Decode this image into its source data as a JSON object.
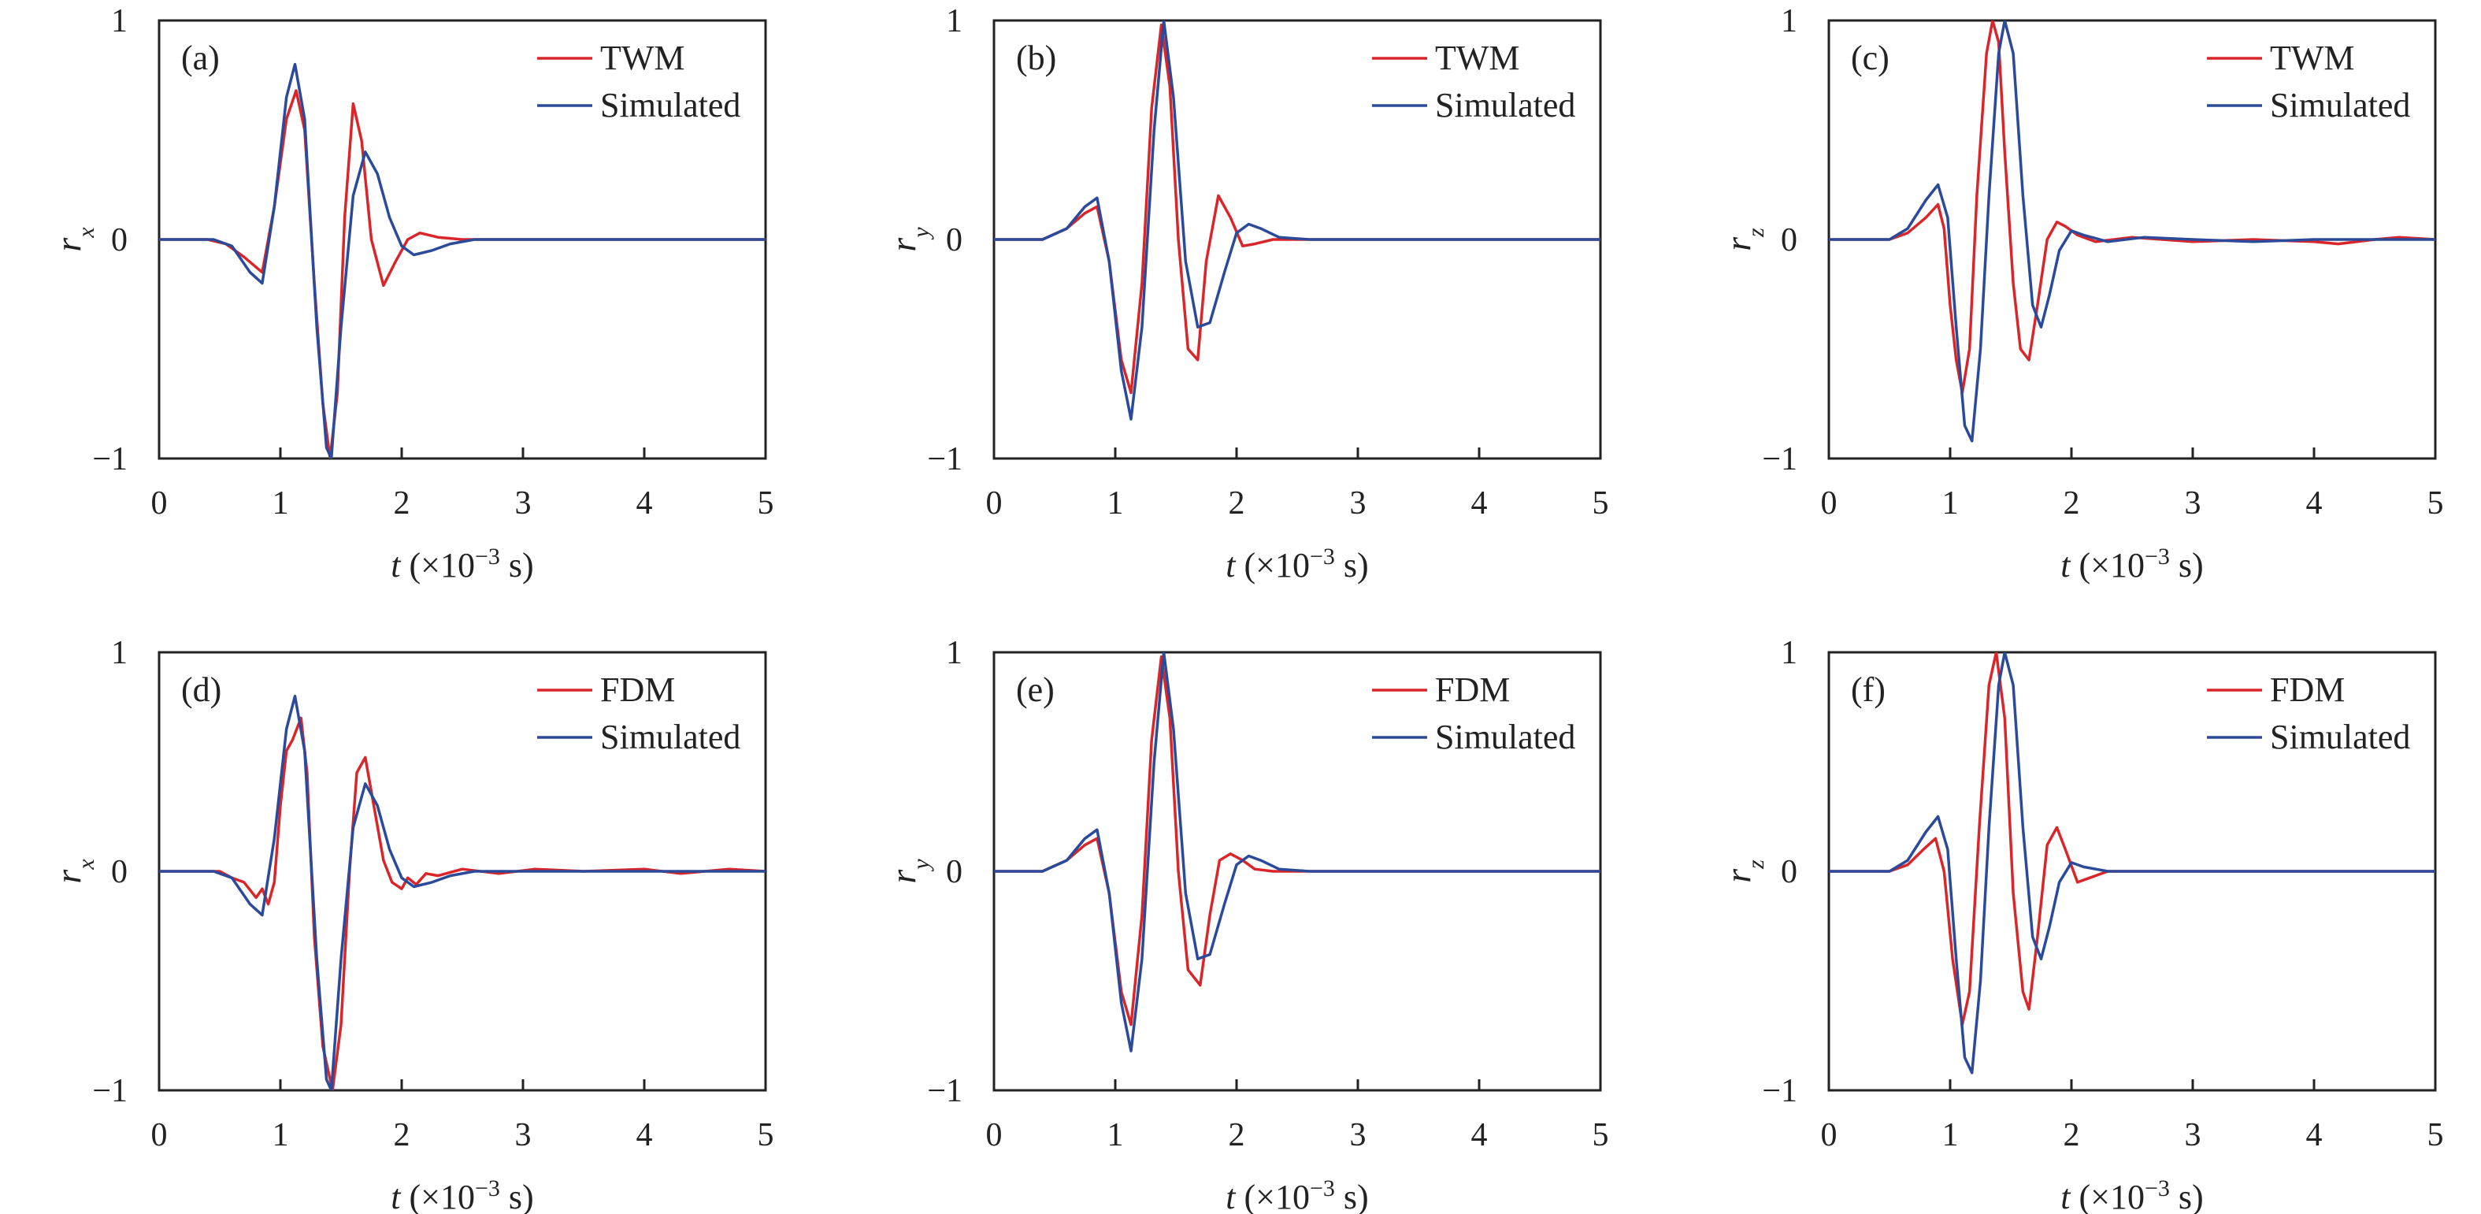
{
  "figure": {
    "colors": {
      "twm_fdm": "#d9262b",
      "simulated": "#2b4a9a",
      "axis": "#222222"
    }
  },
  "chart_data": [
    {
      "panel_label": "(a)",
      "type": "line",
      "xlabel_var": "t",
      "xlabel_rest": " (×10",
      "xlabel_exp": "−3",
      "xlabel_end": " s)",
      "ylabel_var": "r",
      "ylabel_sub": "x",
      "xlim": [
        0,
        5
      ],
      "ylim": [
        -1,
        1
      ],
      "xticks": [
        0,
        1,
        2,
        3,
        4,
        5
      ],
      "yticks": [
        -1,
        0,
        1
      ],
      "xtick_labels": [
        "0",
        "1",
        "2",
        "3",
        "4",
        "5"
      ],
      "ytick_labels": [
        "−1",
        "0",
        "1"
      ],
      "legend_position": "top-right",
      "series": [
        {
          "name": "TWM",
          "color": "#d9262b",
          "x": [
            0,
            0.4,
            0.55,
            0.7,
            0.85,
            0.95,
            1.05,
            1.13,
            1.2,
            1.28,
            1.35,
            1.41,
            1.47,
            1.53,
            1.6,
            1.67,
            1.75,
            1.85,
            1.95,
            2.05,
            2.15,
            2.3,
            2.5,
            5
          ],
          "y": [
            0,
            0,
            -0.02,
            -0.08,
            -0.15,
            0.15,
            0.55,
            0.68,
            0.5,
            -0.2,
            -0.75,
            -1.0,
            -0.7,
            0.1,
            0.62,
            0.45,
            0.0,
            -0.21,
            -0.1,
            0.0,
            0.03,
            0.01,
            0,
            0
          ]
        },
        {
          "name": "Simulated",
          "color": "#2b4a9a",
          "x": [
            0,
            0.45,
            0.6,
            0.75,
            0.85,
            0.95,
            1.05,
            1.12,
            1.2,
            1.3,
            1.38,
            1.42,
            1.5,
            1.6,
            1.7,
            1.8,
            1.9,
            2.0,
            2.1,
            2.25,
            2.4,
            2.6,
            5
          ],
          "y": [
            0,
            0,
            -0.03,
            -0.15,
            -0.2,
            0.15,
            0.65,
            0.8,
            0.55,
            -0.4,
            -0.95,
            -1.0,
            -0.4,
            0.2,
            0.4,
            0.3,
            0.1,
            -0.03,
            -0.07,
            -0.05,
            -0.02,
            0,
            0
          ]
        }
      ]
    },
    {
      "panel_label": "(b)",
      "type": "line",
      "xlabel_var": "t",
      "xlabel_rest": " (×10",
      "xlabel_exp": "−3",
      "xlabel_end": " s)",
      "ylabel_var": "r",
      "ylabel_sub": "y",
      "xlim": [
        0,
        5
      ],
      "ylim": [
        -1,
        1
      ],
      "xticks": [
        0,
        1,
        2,
        3,
        4,
        5
      ],
      "yticks": [
        -1,
        0,
        1
      ],
      "xtick_labels": [
        "0",
        "1",
        "2",
        "3",
        "4",
        "5"
      ],
      "ytick_labels": [
        "−1",
        "0",
        "1"
      ],
      "legend_position": "top-right",
      "series": [
        {
          "name": "TWM",
          "color": "#d9262b",
          "x": [
            0,
            0.4,
            0.6,
            0.75,
            0.85,
            0.95,
            1.05,
            1.13,
            1.22,
            1.3,
            1.38,
            1.45,
            1.52,
            1.6,
            1.68,
            1.75,
            1.85,
            1.95,
            2.05,
            2.15,
            2.3,
            2.5,
            5
          ],
          "y": [
            0,
            0,
            0.05,
            0.12,
            0.15,
            -0.1,
            -0.55,
            -0.7,
            -0.2,
            0.6,
            0.98,
            0.7,
            0.0,
            -0.5,
            -0.55,
            -0.1,
            0.2,
            0.1,
            -0.03,
            -0.02,
            0,
            0,
            0
          ]
        },
        {
          "name": "Simulated",
          "color": "#2b4a9a",
          "x": [
            0,
            0.4,
            0.6,
            0.75,
            0.85,
            0.95,
            1.05,
            1.13,
            1.22,
            1.32,
            1.4,
            1.48,
            1.58,
            1.68,
            1.78,
            1.9,
            2.0,
            2.1,
            2.2,
            2.35,
            2.6,
            5
          ],
          "y": [
            0,
            0,
            0.05,
            0.15,
            0.19,
            -0.1,
            -0.6,
            -0.82,
            -0.4,
            0.5,
            1.0,
            0.65,
            -0.1,
            -0.4,
            -0.38,
            -0.15,
            0.03,
            0.07,
            0.05,
            0.01,
            0,
            0
          ]
        }
      ]
    },
    {
      "panel_label": "(c)",
      "type": "line",
      "xlabel_var": "t",
      "xlabel_rest": " (×10",
      "xlabel_exp": "−3",
      "xlabel_end": " s)",
      "ylabel_var": "r",
      "ylabel_sub": "z",
      "xlim": [
        0,
        5
      ],
      "ylim": [
        -1,
        1
      ],
      "xticks": [
        0,
        1,
        2,
        3,
        4,
        5
      ],
      "yticks": [
        -1,
        0,
        1
      ],
      "xtick_labels": [
        "0",
        "1",
        "2",
        "3",
        "4",
        "5"
      ],
      "ytick_labels": [
        "−1",
        "0",
        "1"
      ],
      "legend_position": "top-right",
      "series": [
        {
          "name": "TWM",
          "color": "#d9262b",
          "x": [
            0,
            0.5,
            0.65,
            0.8,
            0.9,
            0.95,
            1.0,
            1.05,
            1.1,
            1.16,
            1.22,
            1.3,
            1.35,
            1.4,
            1.45,
            1.52,
            1.58,
            1.65,
            1.72,
            1.8,
            1.88,
            1.95,
            2.05,
            2.2,
            2.5,
            3.0,
            3.5,
            4.0,
            4.2,
            4.5,
            4.7,
            5
          ],
          "y": [
            0,
            0,
            0.03,
            0.1,
            0.16,
            0.05,
            -0.3,
            -0.55,
            -0.7,
            -0.5,
            0.2,
            0.85,
            1.0,
            0.9,
            0.4,
            -0.2,
            -0.5,
            -0.55,
            -0.3,
            0.0,
            0.08,
            0.06,
            0.02,
            -0.01,
            0.01,
            -0.01,
            0.0,
            -0.01,
            -0.02,
            0.0,
            0.01,
            0
          ]
        },
        {
          "name": "Simulated",
          "color": "#2b4a9a",
          "x": [
            0,
            0.5,
            0.65,
            0.8,
            0.9,
            0.98,
            1.05,
            1.12,
            1.18,
            1.25,
            1.32,
            1.4,
            1.45,
            1.52,
            1.6,
            1.68,
            1.75,
            1.82,
            1.9,
            2.0,
            2.1,
            2.3,
            2.6,
            3.0,
            3.5,
            4.0,
            4.5,
            5
          ],
          "y": [
            0,
            0,
            0.05,
            0.18,
            0.25,
            0.1,
            -0.4,
            -0.85,
            -0.92,
            -0.5,
            0.2,
            0.85,
            1.0,
            0.85,
            0.2,
            -0.3,
            -0.4,
            -0.25,
            -0.05,
            0.04,
            0.02,
            -0.01,
            0.01,
            0.0,
            -0.01,
            0.0,
            0.0,
            0
          ]
        }
      ]
    },
    {
      "panel_label": "(d)",
      "type": "line",
      "xlabel_var": "t",
      "xlabel_rest": " (×10",
      "xlabel_exp": "−3",
      "xlabel_end": " s)",
      "ylabel_var": "r",
      "ylabel_sub": "x",
      "xlim": [
        0,
        5
      ],
      "ylim": [
        -1,
        1
      ],
      "xticks": [
        0,
        1,
        2,
        3,
        4,
        5
      ],
      "yticks": [
        -1,
        0,
        1
      ],
      "xtick_labels": [
        "0",
        "1",
        "2",
        "3",
        "4",
        "5"
      ],
      "ytick_labels": [
        "−1",
        "0",
        "1"
      ],
      "legend_position": "top-right",
      "series": [
        {
          "name": "FDM",
          "color": "#d9262b",
          "x": [
            0,
            0.5,
            0.6,
            0.7,
            0.8,
            0.85,
            0.9,
            0.95,
            1.0,
            1.05,
            1.1,
            1.17,
            1.22,
            1.28,
            1.35,
            1.43,
            1.5,
            1.57,
            1.63,
            1.7,
            1.77,
            1.85,
            1.92,
            2.0,
            2.05,
            2.12,
            2.2,
            2.3,
            2.5,
            2.8,
            3.1,
            3.5,
            4.0,
            4.3,
            4.7,
            5
          ],
          "y": [
            0,
            0,
            -0.03,
            -0.05,
            -0.12,
            -0.08,
            -0.15,
            -0.05,
            0.3,
            0.55,
            0.6,
            0.7,
            0.45,
            -0.3,
            -0.8,
            -1.0,
            -0.7,
            0.0,
            0.45,
            0.52,
            0.3,
            0.05,
            -0.05,
            -0.08,
            -0.03,
            -0.06,
            -0.01,
            -0.02,
            0.01,
            -0.01,
            0.01,
            0.0,
            0.01,
            -0.01,
            0.01,
            0
          ]
        },
        {
          "name": "Simulated",
          "color": "#2b4a9a",
          "x": [
            0,
            0.45,
            0.6,
            0.75,
            0.85,
            0.95,
            1.05,
            1.12,
            1.2,
            1.3,
            1.38,
            1.42,
            1.5,
            1.6,
            1.7,
            1.8,
            1.9,
            2.0,
            2.1,
            2.25,
            2.4,
            2.6,
            5
          ],
          "y": [
            0,
            0,
            -0.03,
            -0.15,
            -0.2,
            0.15,
            0.65,
            0.8,
            0.55,
            -0.4,
            -0.95,
            -1.0,
            -0.4,
            0.2,
            0.4,
            0.3,
            0.1,
            -0.03,
            -0.07,
            -0.05,
            -0.02,
            0,
            0
          ]
        }
      ]
    },
    {
      "panel_label": "(e)",
      "type": "line",
      "xlabel_var": "t",
      "xlabel_rest": " (×10",
      "xlabel_exp": "−3",
      "xlabel_end": " s)",
      "ylabel_var": "r",
      "ylabel_sub": "y",
      "xlim": [
        0,
        5
      ],
      "ylim": [
        -1,
        1
      ],
      "xticks": [
        0,
        1,
        2,
        3,
        4,
        5
      ],
      "yticks": [
        -1,
        0,
        1
      ],
      "xtick_labels": [
        "0",
        "1",
        "2",
        "3",
        "4",
        "5"
      ],
      "ytick_labels": [
        "−1",
        "0",
        "1"
      ],
      "legend_position": "top-right",
      "series": [
        {
          "name": "FDM",
          "color": "#d9262b",
          "x": [
            0,
            0.4,
            0.6,
            0.75,
            0.85,
            0.95,
            1.05,
            1.13,
            1.22,
            1.3,
            1.38,
            1.45,
            1.52,
            1.6,
            1.7,
            1.78,
            1.86,
            1.95,
            2.05,
            2.15,
            2.3,
            2.5,
            5
          ],
          "y": [
            0,
            0,
            0.05,
            0.12,
            0.15,
            -0.1,
            -0.55,
            -0.7,
            -0.2,
            0.6,
            0.98,
            0.7,
            0.0,
            -0.45,
            -0.52,
            -0.2,
            0.05,
            0.08,
            0.05,
            0.01,
            0,
            0,
            0
          ]
        },
        {
          "name": "Simulated",
          "color": "#2b4a9a",
          "x": [
            0,
            0.4,
            0.6,
            0.75,
            0.85,
            0.95,
            1.05,
            1.13,
            1.22,
            1.32,
            1.4,
            1.48,
            1.58,
            1.68,
            1.78,
            1.9,
            2.0,
            2.1,
            2.2,
            2.35,
            2.6,
            5
          ],
          "y": [
            0,
            0,
            0.05,
            0.15,
            0.19,
            -0.1,
            -0.6,
            -0.82,
            -0.4,
            0.5,
            1.0,
            0.65,
            -0.1,
            -0.4,
            -0.38,
            -0.15,
            0.03,
            0.07,
            0.05,
            0.01,
            0,
            0
          ]
        }
      ]
    },
    {
      "panel_label": "(f)",
      "type": "line",
      "xlabel_var": "t",
      "xlabel_rest": " (×10",
      "xlabel_exp": "−3",
      "xlabel_end": " s)",
      "ylabel_var": "r",
      "ylabel_sub": "z",
      "xlim": [
        0,
        5
      ],
      "ylim": [
        -1,
        1
      ],
      "xticks": [
        0,
        1,
        2,
        3,
        4,
        5
      ],
      "yticks": [
        -1,
        0,
        1
      ],
      "xtick_labels": [
        "0",
        "1",
        "2",
        "3",
        "4",
        "5"
      ],
      "ytick_labels": [
        "−1",
        "0",
        "1"
      ],
      "legend_position": "top-right",
      "series": [
        {
          "name": "FDM",
          "color": "#d9262b",
          "x": [
            0,
            0.5,
            0.65,
            0.78,
            0.88,
            0.95,
            1.02,
            1.1,
            1.16,
            1.24,
            1.32,
            1.38,
            1.45,
            1.52,
            1.6,
            1.65,
            1.72,
            1.8,
            1.88,
            1.95,
            2.05,
            2.15,
            2.3,
            2.5,
            5
          ],
          "y": [
            0,
            0,
            0.03,
            0.1,
            0.15,
            0.0,
            -0.4,
            -0.7,
            -0.55,
            0.2,
            0.85,
            1.0,
            0.7,
            -0.1,
            -0.55,
            -0.63,
            -0.3,
            0.12,
            0.2,
            0.1,
            -0.05,
            -0.03,
            0,
            0,
            0
          ]
        },
        {
          "name": "Simulated",
          "color": "#2b4a9a",
          "x": [
            0,
            0.5,
            0.65,
            0.8,
            0.9,
            0.98,
            1.05,
            1.12,
            1.18,
            1.25,
            1.32,
            1.4,
            1.45,
            1.52,
            1.6,
            1.68,
            1.75,
            1.82,
            1.9,
            2.0,
            2.1,
            2.3,
            2.6,
            5
          ],
          "y": [
            0,
            0,
            0.05,
            0.18,
            0.25,
            0.1,
            -0.4,
            -0.85,
            -0.92,
            -0.5,
            0.2,
            0.85,
            1.0,
            0.85,
            0.2,
            -0.3,
            -0.4,
            -0.25,
            -0.05,
            0.04,
            0.02,
            0.0,
            0,
            0
          ]
        }
      ]
    }
  ]
}
